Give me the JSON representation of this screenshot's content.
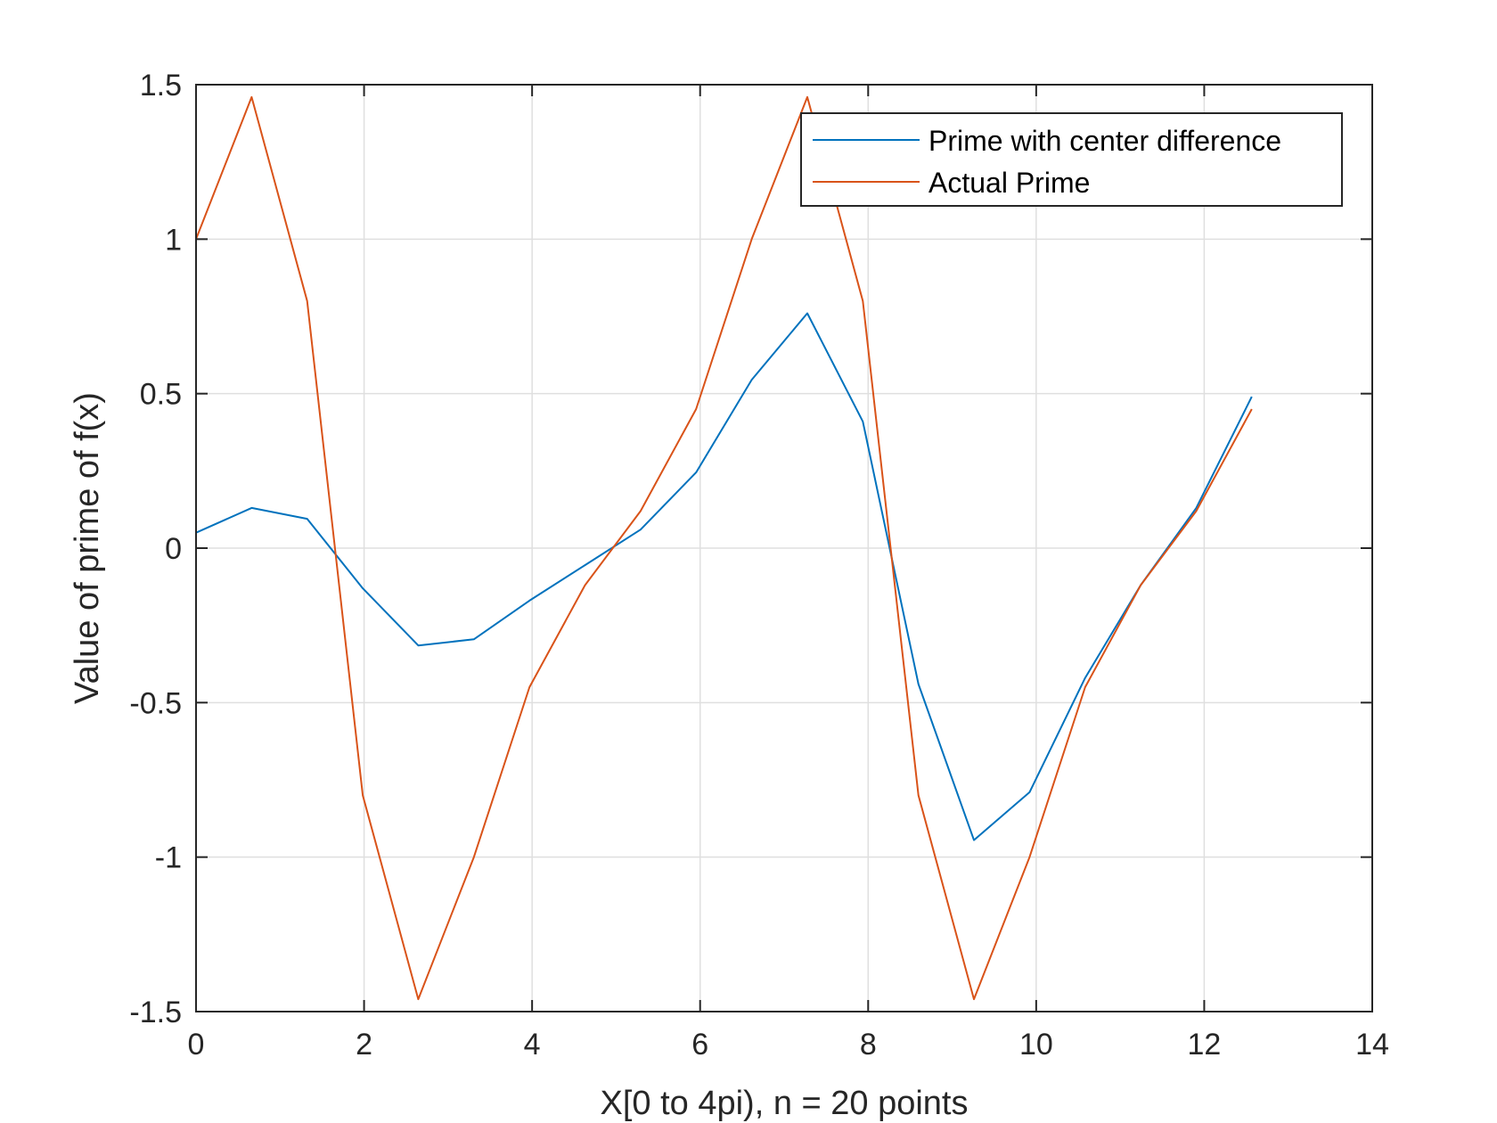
{
  "chart_data": {
    "type": "line",
    "xlabel": "X[0 to 4pi), n = 20 points",
    "ylabel": "Value of prime of f(x)",
    "xlim": [
      0,
      14
    ],
    "ylim": [
      -1.5,
      1.5
    ],
    "xticks": [
      "0",
      "2",
      "4",
      "6",
      "8",
      "10",
      "12",
      "14"
    ],
    "yticks": [
      "-1.5",
      "-1",
      "-0.5",
      "0",
      "0.5",
      "1",
      "1.5"
    ],
    "grid": true,
    "legend_position": "top-right",
    "x": [
      0,
      0.6614,
      1.3228,
      1.9842,
      2.6456,
      3.3069,
      3.9683,
      4.6297,
      5.2911,
      5.9525,
      6.6139,
      7.2753,
      7.9367,
      8.5981,
      9.2595,
      9.9208,
      10.5822,
      11.2436,
      11.905,
      12.5664
    ],
    "series": [
      {
        "name": "Prime with center difference",
        "color": "#0072BD",
        "values": [
          0.05,
          0.13,
          0.095,
          -0.13,
          -0.315,
          -0.295,
          -0.17,
          -0.055,
          0.06,
          0.245,
          0.545,
          0.76,
          0.41,
          -0.44,
          -0.945,
          -0.79,
          -0.42,
          -0.12,
          0.13,
          0.49
        ]
      },
      {
        "name": "Actual Prime",
        "color": "#D95319",
        "values": [
          1.0,
          1.46,
          0.8,
          -0.8,
          -1.46,
          -1.0,
          -0.45,
          -0.12,
          0.12,
          0.45,
          1.0,
          1.46,
          0.8,
          -0.8,
          -1.46,
          -1.0,
          -0.45,
          -0.12,
          0.12,
          0.45
        ]
      }
    ]
  }
}
